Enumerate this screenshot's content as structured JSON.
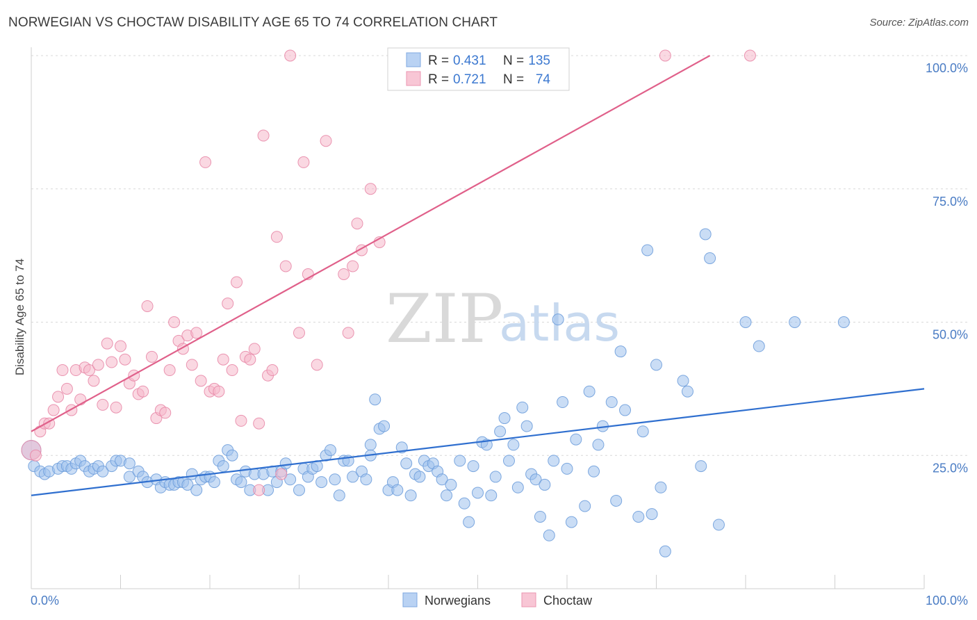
{
  "title": "NORWEGIAN VS CHOCTAW DISABILITY AGE 65 TO 74 CORRELATION CHART",
  "source": "Source: ZipAtlas.com",
  "watermark": {
    "zip": "ZIP",
    "atlas": "atlas"
  },
  "colors": {
    "blue": "#9fc1ec",
    "blue_stroke": "#6f9fdc",
    "blue_line": "#2f6fcf",
    "pink": "#f5b8cb",
    "pink_stroke": "#e88aa8",
    "pink_line": "#e0608a",
    "grid": "#d8d8d8",
    "axis_label": "#4a7cc4"
  },
  "chart_data": {
    "type": "scatter",
    "xlabel": "",
    "ylabel": "Disability Age 65 to 74",
    "xlim": [
      0,
      100
    ],
    "ylim": [
      0,
      100
    ],
    "x_tick_labels": {
      "left": "0.0%",
      "right": "100.0%"
    },
    "y_ticks": [
      {
        "value": 25,
        "label": "25.0%"
      },
      {
        "value": 50,
        "label": "50.0%"
      },
      {
        "value": 75,
        "label": "75.0%"
      },
      {
        "value": 100,
        "label": "100.0%"
      }
    ],
    "grid": true,
    "legend": {
      "position": "top-center",
      "rows": [
        {
          "r_label": "R =",
          "r_value": "0.431",
          "n_label": "N =",
          "n_value": "135"
        },
        {
          "r_label": "R =",
          "r_value": "0.721",
          "n_label": "N =",
          "n_value": "74"
        }
      ]
    },
    "series": [
      {
        "name": "Norwegians",
        "color": "#9fc1ec",
        "trend": {
          "x": [
            0,
            100
          ],
          "y": [
            17.5,
            37.5
          ]
        },
        "points": [
          [
            0,
            26
          ],
          [
            0.3,
            23
          ],
          [
            1,
            22
          ],
          [
            1.5,
            21.5
          ],
          [
            2,
            22
          ],
          [
            3,
            22.5
          ],
          [
            3.5,
            23
          ],
          [
            4,
            23
          ],
          [
            4.5,
            22.5
          ],
          [
            5,
            23.5
          ],
          [
            5.5,
            24
          ],
          [
            6,
            23
          ],
          [
            6.5,
            22
          ],
          [
            7,
            22.5
          ],
          [
            7.5,
            23
          ],
          [
            8,
            22
          ],
          [
            9,
            23
          ],
          [
            9.5,
            24
          ],
          [
            10,
            24
          ],
          [
            11,
            23.5
          ],
          [
            11,
            21
          ],
          [
            12,
            22
          ],
          [
            12.5,
            21
          ],
          [
            13,
            20
          ],
          [
            14,
            20.5
          ],
          [
            14.5,
            19
          ],
          [
            15,
            20
          ],
          [
            15.5,
            19.5
          ],
          [
            16,
            19.5
          ],
          [
            16.5,
            20
          ],
          [
            17,
            20
          ],
          [
            17.5,
            19.5
          ],
          [
            18,
            21.5
          ],
          [
            18.5,
            18.5
          ],
          [
            19,
            20.5
          ],
          [
            19.5,
            21
          ],
          [
            20,
            21
          ],
          [
            20.5,
            20
          ],
          [
            21,
            24
          ],
          [
            21.5,
            23
          ],
          [
            22,
            26
          ],
          [
            22.5,
            25
          ],
          [
            23,
            20.5
          ],
          [
            23.5,
            20
          ],
          [
            24,
            22
          ],
          [
            24.5,
            18.5
          ],
          [
            25,
            21.5
          ],
          [
            26,
            21.5
          ],
          [
            26.5,
            18.5
          ],
          [
            27,
            22
          ],
          [
            27.5,
            20
          ],
          [
            28,
            22
          ],
          [
            28.5,
            23.5
          ],
          [
            29,
            20.5
          ],
          [
            30,
            18.5
          ],
          [
            30.5,
            22.5
          ],
          [
            31,
            21
          ],
          [
            31.5,
            22.5
          ],
          [
            32,
            23
          ],
          [
            32.5,
            20
          ],
          [
            33,
            25
          ],
          [
            33.5,
            26
          ],
          [
            34,
            20.5
          ],
          [
            34.5,
            17.5
          ],
          [
            35,
            24
          ],
          [
            35.5,
            24
          ],
          [
            36,
            21
          ],
          [
            37,
            22
          ],
          [
            37.5,
            20.5
          ],
          [
            38,
            27
          ],
          [
            38,
            25
          ],
          [
            38.5,
            35.5
          ],
          [
            39,
            30
          ],
          [
            39.5,
            30.5
          ],
          [
            40,
            18.5
          ],
          [
            40.5,
            20
          ],
          [
            41,
            18.5
          ],
          [
            41.5,
            26.5
          ],
          [
            42,
            23.5
          ],
          [
            42.5,
            17.5
          ],
          [
            43,
            21.5
          ],
          [
            43.5,
            21
          ],
          [
            44,
            24
          ],
          [
            44.5,
            23
          ],
          [
            45,
            23.5
          ],
          [
            45.5,
            22
          ],
          [
            46,
            20.5
          ],
          [
            46.5,
            17.5
          ],
          [
            47,
            19.5
          ],
          [
            48,
            24
          ],
          [
            48.5,
            16
          ],
          [
            49,
            12.5
          ],
          [
            49.5,
            23
          ],
          [
            50,
            18
          ],
          [
            50.5,
            27.5
          ],
          [
            51,
            27
          ],
          [
            51.5,
            17.5
          ],
          [
            52,
            21
          ],
          [
            52.5,
            29.5
          ],
          [
            53,
            32
          ],
          [
            53.5,
            24
          ],
          [
            54,
            27
          ],
          [
            54.5,
            19
          ],
          [
            55,
            34
          ],
          [
            55.5,
            30.5
          ],
          [
            56,
            21.5
          ],
          [
            56.5,
            20.5
          ],
          [
            57,
            13.5
          ],
          [
            57.5,
            19.5
          ],
          [
            58,
            10
          ],
          [
            58.5,
            24
          ],
          [
            59,
            50.5
          ],
          [
            59.5,
            35
          ],
          [
            60,
            22.5
          ],
          [
            60.5,
            12.5
          ],
          [
            61,
            28
          ],
          [
            62,
            15.5
          ],
          [
            62.5,
            37
          ],
          [
            63,
            22
          ],
          [
            63.5,
            27
          ],
          [
            64,
            30.5
          ],
          [
            65,
            35
          ],
          [
            65.5,
            16.5
          ],
          [
            66,
            44.5
          ],
          [
            66.5,
            33.5
          ],
          [
            68,
            13.5
          ],
          [
            68.5,
            29.5
          ],
          [
            69,
            63.5
          ],
          [
            69.5,
            14
          ],
          [
            70,
            42
          ],
          [
            70.5,
            19
          ],
          [
            71,
            7
          ],
          [
            73,
            39
          ],
          [
            73.5,
            37
          ],
          [
            75,
            23
          ],
          [
            75.5,
            66.5
          ],
          [
            76,
            62
          ],
          [
            77,
            12
          ],
          [
            80,
            50
          ],
          [
            81.5,
            45.5
          ],
          [
            85.5,
            50
          ],
          [
            91,
            50
          ]
        ]
      },
      {
        "name": "Choctaw",
        "color": "#f5b8cb",
        "trend": {
          "x": [
            0,
            76
          ],
          "y": [
            29.5,
            100
          ]
        },
        "points": [
          [
            0,
            26
          ],
          [
            0.5,
            25
          ],
          [
            1,
            29.5
          ],
          [
            1.5,
            31
          ],
          [
            2,
            31
          ],
          [
            2.5,
            33.5
          ],
          [
            3,
            36
          ],
          [
            3.5,
            41
          ],
          [
            4,
            37.5
          ],
          [
            4.5,
            33.5
          ],
          [
            5,
            41
          ],
          [
            5.5,
            35.5
          ],
          [
            6,
            41.5
          ],
          [
            6.5,
            41
          ],
          [
            7,
            39
          ],
          [
            7.5,
            42
          ],
          [
            8,
            34.5
          ],
          [
            8.5,
            46
          ],
          [
            9,
            42.5
          ],
          [
            9.5,
            34
          ],
          [
            10,
            45.5
          ],
          [
            10.5,
            43
          ],
          [
            11,
            38.5
          ],
          [
            11.5,
            40
          ],
          [
            12,
            36.5
          ],
          [
            12.5,
            37
          ],
          [
            13,
            53
          ],
          [
            13.5,
            43.5
          ],
          [
            14,
            32
          ],
          [
            14.5,
            33.5
          ],
          [
            15,
            33
          ],
          [
            15.5,
            41
          ],
          [
            16,
            50
          ],
          [
            16.5,
            46.5
          ],
          [
            17,
            45
          ],
          [
            17.5,
            47.5
          ],
          [
            18,
            42
          ],
          [
            18.5,
            48
          ],
          [
            19,
            39
          ],
          [
            19.5,
            80
          ],
          [
            20,
            37
          ],
          [
            20.5,
            37.5
          ],
          [
            21,
            37
          ],
          [
            21.5,
            43
          ],
          [
            22,
            53.5
          ],
          [
            22.5,
            41
          ],
          [
            23,
            57.5
          ],
          [
            23.5,
            31.5
          ],
          [
            24,
            43.5
          ],
          [
            24.5,
            43
          ],
          [
            25,
            45
          ],
          [
            25.5,
            31
          ],
          [
            26,
            85
          ],
          [
            26.5,
            40
          ],
          [
            27,
            41
          ],
          [
            27.5,
            66
          ],
          [
            28,
            21.5
          ],
          [
            28.5,
            60.5
          ],
          [
            29,
            100
          ],
          [
            30,
            48
          ],
          [
            30.5,
            80
          ],
          [
            31,
            59
          ],
          [
            32,
            42
          ],
          [
            33,
            84
          ],
          [
            35,
            59
          ],
          [
            35.5,
            48
          ],
          [
            36,
            60.5
          ],
          [
            36.5,
            68.5
          ],
          [
            37,
            63.5
          ],
          [
            38,
            75
          ],
          [
            39,
            65
          ],
          [
            71,
            100
          ],
          [
            80.5,
            100
          ],
          [
            25.5,
            18.5
          ]
        ]
      }
    ]
  },
  "bottom_legend": [
    {
      "name": "Norwegians",
      "color": "#9fc1ec"
    },
    {
      "name": "Choctaw",
      "color": "#f5b8cb"
    }
  ]
}
